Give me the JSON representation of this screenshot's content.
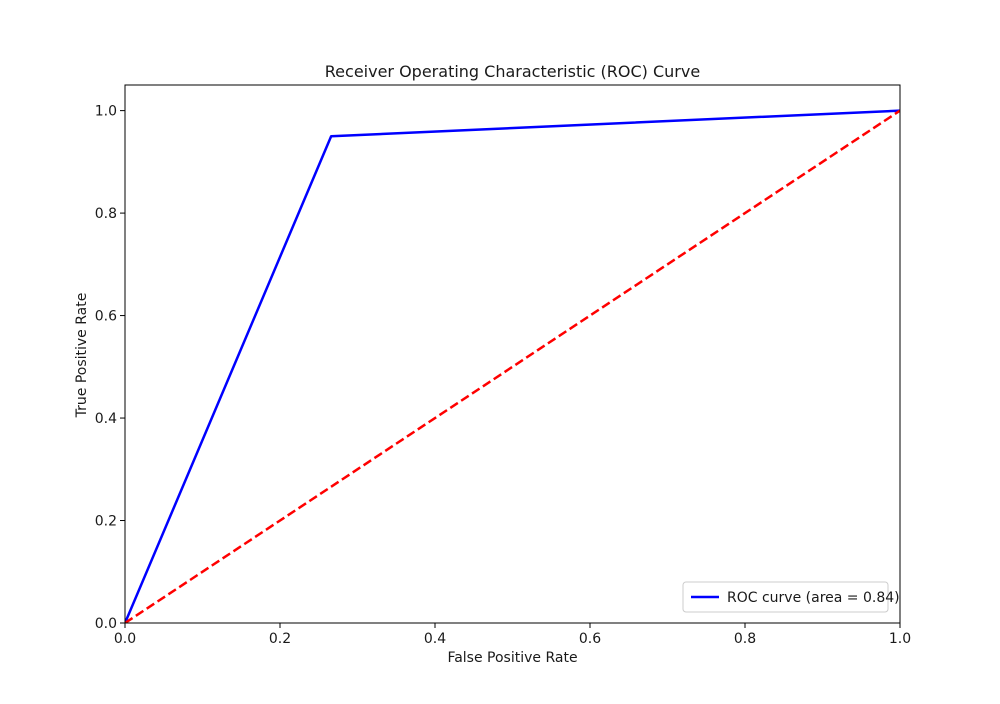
{
  "chart_data": {
    "type": "line",
    "title": "Receiver Operating Characteristic (ROC) Curve",
    "xlabel": "False Positive Rate",
    "ylabel": "True Positive Rate",
    "xlim": [
      0.0,
      1.0
    ],
    "ylim": [
      0.0,
      1.05
    ],
    "xticks": [
      0.0,
      0.2,
      0.4,
      0.6,
      0.8,
      1.0
    ],
    "yticks": [
      0.0,
      0.2,
      0.4,
      0.6,
      0.8,
      1.0
    ],
    "xtick_labels": [
      "0.0",
      "0.2",
      "0.4",
      "0.6",
      "0.8",
      "1.0"
    ],
    "ytick_labels": [
      "0.0",
      "0.2",
      "0.4",
      "0.6",
      "0.8",
      "1.0"
    ],
    "grid": false,
    "legend_position": "lower-right",
    "series": [
      {
        "name": "ROC curve (area = 0.84)",
        "color": "#0000ff",
        "style": "solid",
        "x": [
          0.0,
          0.266,
          1.0
        ],
        "y": [
          0.0,
          0.95,
          1.0
        ]
      },
      {
        "color": "#ff0000",
        "style": "dashed",
        "x": [
          0.0,
          1.0
        ],
        "y": [
          0.0,
          1.0
        ]
      }
    ]
  }
}
